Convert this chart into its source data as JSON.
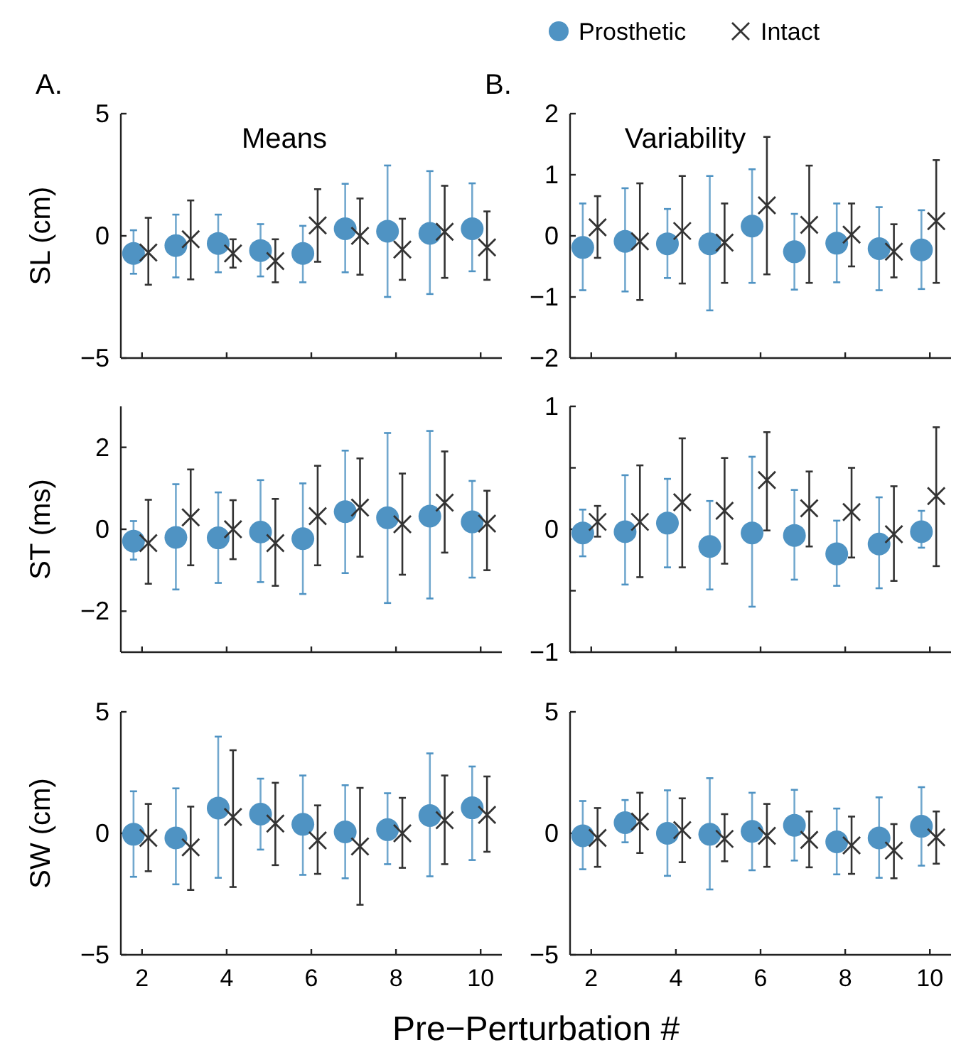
{
  "chart_data": [
    {
      "type": "scatter",
      "title": "Means",
      "ylabel": "SL (cm)",
      "annotations": [
        "A."
      ],
      "xlim": [
        1.5,
        10.5
      ],
      "xticks": [
        2,
        4,
        6,
        8,
        10
      ],
      "ylim": [
        -5,
        5
      ],
      "yticks": [
        -5,
        0,
        5
      ],
      "tick_labels": "y",
      "legend": false,
      "series": [
        {
          "color": "#4f93c3",
          "marker": "circle",
          "x": [
            1.8,
            2.8,
            3.8,
            4.8,
            5.8,
            6.8,
            7.8,
            8.8,
            9.8
          ],
          "values": [
            -0.72,
            -0.4,
            -0.31,
            -0.6,
            -0.72,
            0.29,
            0.19,
            0.1,
            0.29
          ],
          "errors": [
            [
              -1.55,
              0.23
            ],
            [
              -1.7,
              0.87
            ],
            [
              -1.49,
              0.87
            ],
            [
              -1.66,
              0.48
            ],
            [
              -1.9,
              0.41
            ],
            [
              -1.49,
              2.13
            ],
            [
              -2.5,
              2.88
            ],
            [
              -2.38,
              2.65
            ],
            [
              -1.45,
              2.15
            ]
          ]
        },
        {
          "color": "#333333",
          "marker": "cross",
          "x": [
            2.15,
            3.15,
            4.15,
            5.15,
            6.15,
            7.15,
            8.15,
            9.15,
            10.15
          ],
          "values": [
            -0.68,
            -0.14,
            -0.72,
            -1.03,
            0.43,
            0,
            -0.56,
            0.17,
            -0.47
          ],
          "errors": [
            [
              -2.0,
              0.74
            ],
            [
              -1.78,
              1.45
            ],
            [
              -1.3,
              -0.14
            ],
            [
              -1.9,
              -0.14
            ],
            [
              -1.06,
              1.91
            ],
            [
              -1.59,
              1.53
            ],
            [
              -1.8,
              0.7
            ],
            [
              -1.72,
              2.05
            ],
            [
              -1.8,
              1.0
            ]
          ]
        }
      ]
    },
    {
      "type": "scatter",
      "title": "Variability",
      "annotations": [
        "B."
      ],
      "xlim": [
        1.5,
        10.5
      ],
      "xticks": [
        2,
        4,
        6,
        8,
        10
      ],
      "ylim": [
        -2,
        2
      ],
      "yticks": [
        -2,
        -1,
        0,
        1,
        2
      ],
      "tick_labels": "y",
      "legend": "top",
      "series": [
        {
          "name": "Prosthetic",
          "color": "#4f93c3",
          "marker": "circle",
          "x": [
            1.8,
            2.8,
            3.8,
            4.8,
            5.8,
            6.8,
            7.8,
            8.8,
            9.8
          ],
          "values": [
            -0.19,
            -0.09,
            -0.13,
            -0.13,
            0.16,
            -0.26,
            -0.12,
            -0.21,
            -0.23
          ],
          "errors": [
            [
              -0.89,
              0.53
            ],
            [
              -0.91,
              0.78
            ],
            [
              -0.69,
              0.44
            ],
            [
              -1.22,
              0.98
            ],
            [
              -0.77,
              1.09
            ],
            [
              -0.88,
              0.36
            ],
            [
              -0.76,
              0.53
            ],
            [
              -0.89,
              0.47
            ],
            [
              -0.87,
              0.42
            ]
          ]
        },
        {
          "name": "Intact",
          "color": "#333333",
          "marker": "cross",
          "x": [
            2.15,
            3.15,
            4.15,
            5.15,
            6.15,
            7.15,
            8.15,
            9.15,
            10.15
          ],
          "values": [
            0.14,
            -0.09,
            0.08,
            -0.11,
            0.5,
            0.18,
            0.02,
            -0.26,
            0.24
          ],
          "errors": [
            [
              -0.36,
              0.65
            ],
            [
              -1.05,
              0.86
            ],
            [
              -0.78,
              0.98
            ],
            [
              -0.77,
              0.53
            ],
            [
              -0.63,
              1.62
            ],
            [
              -0.77,
              1.15
            ],
            [
              -0.5,
              0.53
            ],
            [
              -0.68,
              0.19
            ],
            [
              -0.77,
              1.24
            ]
          ]
        }
      ]
    },
    {
      "type": "scatter",
      "ylabel": "ST (ms)",
      "xlim": [
        1.5,
        10.5
      ],
      "xticks": [
        2,
        4,
        6,
        8,
        10
      ],
      "ylim": [
        -3,
        3
      ],
      "yticks": [
        -2,
        0,
        2
      ],
      "tick_labels": "y",
      "legend": false,
      "series": [
        {
          "color": "#4f93c3",
          "marker": "circle",
          "x": [
            1.8,
            2.8,
            3.8,
            4.8,
            5.8,
            6.8,
            7.8,
            8.8,
            9.8
          ],
          "values": [
            -0.29,
            -0.2,
            -0.21,
            -0.07,
            -0.23,
            0.43,
            0.28,
            0.32,
            0.18
          ],
          "errors": [
            [
              -0.74,
              0.2
            ],
            [
              -1.47,
              1.1
            ],
            [
              -1.31,
              0.9
            ],
            [
              -1.29,
              1.2
            ],
            [
              -1.58,
              1.12
            ],
            [
              -1.07,
              1.92
            ],
            [
              -1.8,
              2.35
            ],
            [
              -1.69,
              2.4
            ],
            [
              -1.18,
              1.18
            ]
          ]
        },
        {
          "color": "#333333",
          "marker": "cross",
          "x": [
            2.15,
            3.15,
            4.15,
            5.15,
            6.15,
            7.15,
            8.15,
            9.15,
            10.15
          ],
          "values": [
            -0.34,
            0.29,
            0,
            -0.34,
            0.32,
            0.53,
            0.12,
            0.65,
            0.14
          ],
          "errors": [
            [
              -1.33,
              0.72
            ],
            [
              -0.88,
              1.46
            ],
            [
              -0.73,
              0.71
            ],
            [
              -1.38,
              0.74
            ],
            [
              -0.88,
              1.55
            ],
            [
              -0.67,
              1.73
            ],
            [
              -1.11,
              1.36
            ],
            [
              -0.57,
              1.9
            ],
            [
              -1.0,
              0.94
            ]
          ]
        }
      ]
    },
    {
      "type": "scatter",
      "xlim": [
        1.5,
        10.5
      ],
      "xticks": [
        2,
        4,
        6,
        8,
        10
      ],
      "ylim": [
        -1,
        1
      ],
      "yticks": [
        -1,
        {
          "value": -0.5,
          "label": null
        },
        0,
        {
          "value": 0.5,
          "label": null
        },
        1
      ],
      "tick_labels": "y",
      "legend": false,
      "series": [
        {
          "color": "#4f93c3",
          "marker": "circle",
          "x": [
            1.8,
            2.8,
            3.8,
            4.8,
            5.8,
            6.8,
            7.8,
            8.8,
            9.8
          ],
          "values": [
            -0.03,
            -0.02,
            0.05,
            -0.14,
            -0.03,
            -0.05,
            -0.2,
            -0.12,
            -0.02
          ],
          "errors": [
            [
              -0.22,
              0.16
            ],
            [
              -0.45,
              0.44
            ],
            [
              -0.31,
              0.41
            ],
            [
              -0.49,
              0.23
            ],
            [
              -0.63,
              0.59
            ],
            [
              -0.41,
              0.32
            ],
            [
              -0.46,
              0.07
            ],
            [
              -0.48,
              0.26
            ],
            [
              -0.15,
              0.15
            ]
          ]
        },
        {
          "color": "#333333",
          "marker": "cross",
          "x": [
            2.15,
            3.15,
            4.15,
            5.15,
            6.15,
            7.15,
            8.15,
            9.15,
            10.15
          ],
          "values": [
            0.06,
            0.06,
            0.22,
            0.15,
            0.4,
            0.17,
            0.14,
            -0.04,
            0.27
          ],
          "errors": [
            [
              -0.06,
              0.19
            ],
            [
              -0.39,
              0.52
            ],
            [
              -0.31,
              0.74
            ],
            [
              -0.28,
              0.58
            ],
            [
              -0.01,
              0.79
            ],
            [
              -0.14,
              0.47
            ],
            [
              -0.23,
              0.5
            ],
            [
              -0.42,
              0.35
            ],
            [
              -0.3,
              0.83
            ]
          ]
        }
      ]
    },
    {
      "type": "scatter",
      "ylabel": "SW (cm)",
      "xlabel": "Pre−Perturbation #",
      "xlim": [
        1.5,
        10.5
      ],
      "xticks": [
        2,
        4,
        6,
        8,
        10
      ],
      "ylim": [
        -5,
        5
      ],
      "yticks": [
        -5,
        0,
        5
      ],
      "legend": false,
      "series": [
        {
          "color": "#4f93c3",
          "marker": "circle",
          "x": [
            1.8,
            2.8,
            3.8,
            4.8,
            5.8,
            6.8,
            7.8,
            8.8,
            9.8
          ],
          "values": [
            -0.04,
            -0.19,
            1.04,
            0.79,
            0.37,
            0.06,
            0.15,
            0.73,
            1.05
          ],
          "errors": [
            [
              -1.79,
              1.73
            ],
            [
              -2.1,
              1.85
            ],
            [
              -1.83,
              3.98
            ],
            [
              -0.67,
              2.25
            ],
            [
              -1.71,
              2.38
            ],
            [
              -1.85,
              1.98
            ],
            [
              -1.27,
              1.65
            ],
            [
              -1.77,
              3.29
            ],
            [
              -1.1,
              2.75
            ]
          ]
        },
        {
          "color": "#333333",
          "marker": "cross",
          "x": [
            2.15,
            3.15,
            4.15,
            5.15,
            6.15,
            7.15,
            8.15,
            9.15,
            10.15
          ],
          "values": [
            -0.19,
            -0.58,
            0.67,
            0.4,
            -0.29,
            -0.54,
            0,
            0.54,
            0.76
          ],
          "errors": [
            [
              -1.56,
              1.21
            ],
            [
              -2.33,
              1.1
            ],
            [
              -2.21,
              3.42
            ],
            [
              -1.31,
              2.08
            ],
            [
              -1.67,
              1.15
            ],
            [
              -2.94,
              1.87
            ],
            [
              -1.42,
              1.46
            ],
            [
              -1.27,
              2.38
            ],
            [
              -0.76,
              2.34
            ]
          ]
        }
      ]
    },
    {
      "type": "scatter",
      "xlim": [
        1.5,
        10.5
      ],
      "xticks": [
        2,
        4,
        6,
        8,
        10
      ],
      "ylim": [
        -5,
        5
      ],
      "yticks": [
        -5,
        0,
        5
      ],
      "legend": false,
      "series": [
        {
          "color": "#4f93c3",
          "marker": "circle",
          "x": [
            1.8,
            2.8,
            3.8,
            4.8,
            5.8,
            6.8,
            7.8,
            8.8,
            9.8
          ],
          "values": [
            -0.1,
            0.44,
            0,
            -0.04,
            0.08,
            0.33,
            -0.35,
            -0.19,
            0.29
          ],
          "errors": [
            [
              -1.48,
              1.33
            ],
            [
              -0.37,
              1.37
            ],
            [
              -1.75,
              1.77
            ],
            [
              -2.31,
              2.27
            ],
            [
              -1.52,
              1.67
            ],
            [
              -1.12,
              1.79
            ],
            [
              -1.69,
              1.02
            ],
            [
              -1.83,
              1.48
            ],
            [
              -1.33,
              1.9
            ]
          ]
        },
        {
          "color": "#333333",
          "marker": "cross",
          "x": [
            2.15,
            3.15,
            4.15,
            5.15,
            6.15,
            7.15,
            8.15,
            9.15,
            10.15
          ],
          "values": [
            -0.19,
            0.48,
            0.13,
            -0.23,
            -0.1,
            -0.27,
            -0.5,
            -0.71,
            -0.17
          ],
          "errors": [
            [
              -1.38,
              1.04
            ],
            [
              -0.81,
              1.67
            ],
            [
              -1.19,
              1.44
            ],
            [
              -1.15,
              0.79
            ],
            [
              -1.38,
              1.21
            ],
            [
              -1.4,
              0.9
            ],
            [
              -1.67,
              0.69
            ],
            [
              -1.85,
              0.38
            ],
            [
              -1.25,
              0.9
            ]
          ]
        }
      ]
    }
  ]
}
